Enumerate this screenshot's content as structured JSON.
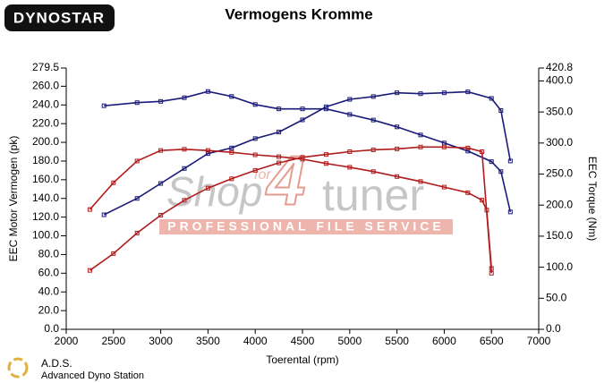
{
  "chart_data": {
    "type": "line",
    "title": "Vermogens Kromme",
    "x_label": "Toerental (rpm)",
    "y_label": "EEC Motor Vermogen (pk)",
    "y2_label": "EEC Torque (Nm)",
    "xlim": [
      2000,
      7000
    ],
    "xticks": [
      2000,
      2500,
      3000,
      3500,
      4000,
      4500,
      5000,
      5500,
      6000,
      6500,
      7000
    ],
    "ylim": [
      0,
      279.5
    ],
    "yticks": [
      {
        "value": 0,
        "label": "0.0"
      },
      {
        "value": 20,
        "label": "20.0"
      },
      {
        "value": 40,
        "label": "40.0"
      },
      {
        "value": 60,
        "label": "60.0"
      },
      {
        "value": 80,
        "label": "80.0"
      },
      {
        "value": 100,
        "label": "100.0"
      },
      {
        "value": 120,
        "label": "120.0"
      },
      {
        "value": 140,
        "label": "140.0"
      },
      {
        "value": 160,
        "label": "160.0"
      },
      {
        "value": 180,
        "label": "180.0"
      },
      {
        "value": 200,
        "label": "200.0"
      },
      {
        "value": 220,
        "label": "220.0"
      },
      {
        "value": 240,
        "label": "240.0"
      },
      {
        "value": 260,
        "label": "260.0"
      },
      279.5
    ],
    "y2lim": [
      0,
      420.8
    ],
    "y2ticks": [
      {
        "value": 0,
        "label": "0.0"
      },
      {
        "value": 50,
        "label": "50.0"
      },
      {
        "value": 100,
        "label": "100.0"
      },
      {
        "value": 150,
        "label": "150.0"
      },
      {
        "value": 200,
        "label": "200.0"
      },
      {
        "value": 250,
        "label": "250.0"
      },
      {
        "value": 300,
        "label": "300.0"
      },
      {
        "value": 350,
        "label": "350.0"
      },
      {
        "value": 400,
        "label": "400.0"
      },
      420.8
    ],
    "series": [
      {
        "color": "#1a1a7a",
        "axis": "y",
        "x": [
          2400,
          2750,
          3000,
          3250,
          3500,
          3750,
          4000,
          4250,
          4500,
          4750,
          5000,
          5250,
          5500,
          5750,
          6000,
          6250,
          6500,
          6600,
          6700
        ],
        "values": [
          122.5,
          140,
          156,
          172,
          188,
          194,
          204,
          211,
          224,
          238,
          246,
          249,
          253,
          252,
          253,
          254,
          247,
          234,
          180
        ]
      },
      {
        "color": "#1a1a7a",
        "axis": "y2",
        "x": [
          2400,
          2750,
          3000,
          3250,
          3500,
          3750,
          4000,
          4250,
          4500,
          4750,
          5000,
          5250,
          5500,
          5750,
          6000,
          6250,
          6500,
          6600,
          6700
        ],
        "values": [
          360,
          365,
          367,
          373,
          383,
          375,
          362,
          355,
          355,
          355,
          346,
          337,
          326,
          313,
          300,
          287,
          270,
          254,
          189
        ]
      },
      {
        "color": "#b01c1c",
        "axis": "y",
        "x": [
          2250,
          2500,
          2750,
          3000,
          3250,
          3500,
          3750,
          4000,
          4250,
          4500,
          4750,
          5000,
          5250,
          5500,
          5750,
          6000,
          6250,
          6400,
          6500
        ],
        "values": [
          63,
          81,
          103,
          122,
          138,
          151,
          161,
          170,
          178,
          184,
          187,
          190,
          192,
          193,
          195,
          195,
          194,
          190,
          60
        ]
      },
      {
        "color": "#b01c1c",
        "axis": "y2",
        "x": [
          2250,
          2500,
          2750,
          3000,
          3250,
          3500,
          3750,
          4000,
          4250,
          4500,
          4750,
          5000,
          5250,
          5500,
          5750,
          6000,
          6250,
          6400,
          6450,
          6500
        ],
        "values": [
          193,
          236,
          271,
          288,
          290,
          288,
          285,
          281,
          278,
          274,
          267,
          261,
          254,
          246,
          238,
          229,
          220,
          208,
          192,
          98
        ]
      }
    ]
  },
  "logo": {
    "brand": "DYNOSTAR",
    "short": "A.D.S.",
    "full": "Advanced Dyno Station"
  },
  "watermark": {
    "word_1": "Shop",
    "word_2": "for",
    "word_3": "4",
    "word_4": "tuner",
    "tagline": "PROFESSIONAL FILE SERVICE"
  }
}
